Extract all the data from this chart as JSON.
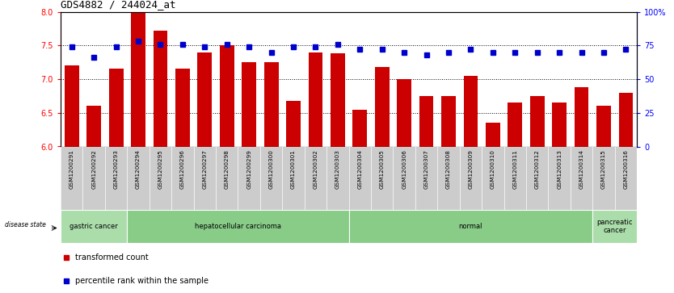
{
  "title": "GDS4882 / 244024_at",
  "samples": [
    "GSM1200291",
    "GSM1200292",
    "GSM1200293",
    "GSM1200294",
    "GSM1200295",
    "GSM1200296",
    "GSM1200297",
    "GSM1200298",
    "GSM1200299",
    "GSM1200300",
    "GSM1200301",
    "GSM1200302",
    "GSM1200303",
    "GSM1200304",
    "GSM1200305",
    "GSM1200306",
    "GSM1200307",
    "GSM1200308",
    "GSM1200309",
    "GSM1200310",
    "GSM1200311",
    "GSM1200312",
    "GSM1200313",
    "GSM1200314",
    "GSM1200315",
    "GSM1200316"
  ],
  "bar_values": [
    7.2,
    6.6,
    7.15,
    8.0,
    7.72,
    7.15,
    7.4,
    7.5,
    7.25,
    7.25,
    6.68,
    7.4,
    7.38,
    6.55,
    7.18,
    7.0,
    6.75,
    6.75,
    7.05,
    6.35,
    6.65,
    6.75,
    6.65,
    6.88,
    6.6,
    6.8
  ],
  "percentile_values": [
    74,
    66,
    74,
    78,
    76,
    76,
    74,
    76,
    74,
    70,
    74,
    74,
    76,
    72,
    72,
    70,
    68,
    70,
    72,
    70,
    70,
    70,
    70,
    70,
    70,
    72
  ],
  "bar_color": "#cc0000",
  "percentile_color": "#0000cc",
  "ylim_left": [
    6.0,
    8.0
  ],
  "ylim_right": [
    0,
    100
  ],
  "yticks_left": [
    6.0,
    6.5,
    7.0,
    7.5,
    8.0
  ],
  "yticks_right": [
    0,
    25,
    50,
    75,
    100
  ],
  "ytick_labels_right": [
    "0",
    "25",
    "50",
    "75",
    "100%"
  ],
  "groups": [
    {
      "label": "gastric cancer",
      "start": 0,
      "end": 3,
      "color": "#aaddaa"
    },
    {
      "label": "hepatocellular carcinoma",
      "start": 3,
      "end": 13,
      "color": "#88cc88"
    },
    {
      "label": "normal",
      "start": 13,
      "end": 24,
      "color": "#88cc88"
    },
    {
      "label": "pancreatic\ncancer",
      "start": 24,
      "end": 26,
      "color": "#aaddaa"
    }
  ],
  "grid_lines": [
    6.5,
    7.0,
    7.5
  ]
}
